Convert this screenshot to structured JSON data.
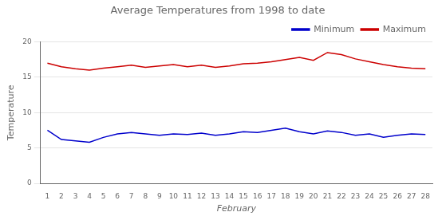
{
  "chart_data": {
    "type": "line",
    "title": "Average Temperatures from 1998 to date",
    "x_label": "February",
    "y_label": "Temperature",
    "x": [
      1,
      2,
      3,
      4,
      5,
      6,
      7,
      8,
      9,
      10,
      11,
      12,
      13,
      14,
      15,
      16,
      17,
      18,
      19,
      20,
      21,
      22,
      23,
      24,
      25,
      26,
      27,
      28
    ],
    "series": [
      {
        "name": "Maximum",
        "color": "#cc0000",
        "values": [
          17.0,
          16.5,
          16.2,
          16.0,
          16.3,
          16.5,
          16.7,
          16.4,
          16.6,
          16.8,
          16.5,
          16.7,
          16.4,
          16.6,
          16.9,
          17.0,
          17.2,
          17.5,
          17.8,
          17.4,
          18.5,
          18.2,
          17.6,
          17.2,
          16.8,
          16.5,
          16.3,
          16.2
        ]
      },
      {
        "name": "Minimum",
        "color": "#0000cc",
        "values": [
          7.5,
          6.2,
          6.0,
          5.8,
          6.5,
          7.0,
          7.2,
          7.0,
          6.8,
          7.0,
          6.9,
          7.1,
          6.8,
          7.0,
          7.3,
          7.2,
          7.5,
          7.8,
          7.3,
          7.0,
          7.4,
          7.2,
          6.8,
          7.0,
          6.5,
          6.8,
          7.0,
          6.9
        ]
      }
    ],
    "xlim": [
      0.5,
      28.5
    ],
    "xticks": [
      1,
      2,
      3,
      4,
      5,
      6,
      7,
      8,
      9,
      10,
      11,
      12,
      13,
      14,
      15,
      16,
      17,
      18,
      19,
      20,
      21,
      22,
      23,
      24,
      25,
      26,
      27,
      28
    ],
    "ylim": [
      0,
      20
    ],
    "yticks": [
      0,
      5,
      10,
      15,
      20
    ],
    "grid": "y",
    "legend": "upper right"
  }
}
